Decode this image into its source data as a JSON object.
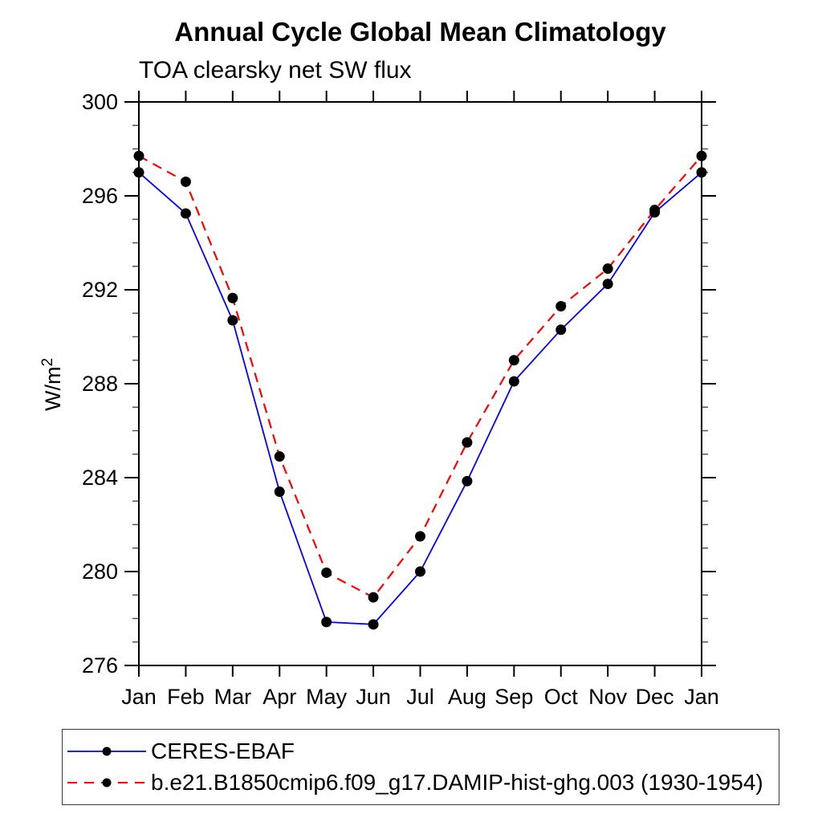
{
  "chart_data": {
    "type": "line",
    "title": "Annual Cycle Global Mean Climatology",
    "subtitle": "TOA clearsky net SW flux",
    "ylabel": "W/m2",
    "ylabel_base": "W/m",
    "ylabel_exp": "2",
    "xlabel": "",
    "categories": [
      "Jan",
      "Feb",
      "Mar",
      "Apr",
      "May",
      "Jun",
      "Jul",
      "Aug",
      "Sep",
      "Oct",
      "Nov",
      "Dec",
      "Jan"
    ],
    "ylim": [
      276,
      300
    ],
    "y_ticks": [
      276,
      280,
      284,
      288,
      292,
      296,
      300
    ],
    "y_minor_step": 1,
    "grid": false,
    "legend_position": "bottom",
    "series": [
      {
        "name": "CERES-EBAF",
        "color": "#0000ff",
        "style": "solid",
        "marker": "black-dot",
        "values": [
          297.0,
          295.25,
          290.7,
          283.4,
          277.85,
          277.75,
          280.0,
          283.85,
          288.1,
          290.3,
          292.25,
          295.3,
          297.0
        ]
      },
      {
        "name": "b.e21.B1850cmip6.f09_g17.DAMIP-hist-ghg.003 (1930-1954)",
        "color": "#ff0000",
        "style": "dashed",
        "marker": "black-dot",
        "values": [
          297.7,
          296.6,
          291.65,
          284.9,
          279.95,
          278.9,
          281.5,
          285.5,
          289.0,
          291.3,
          292.9,
          295.4,
          297.7
        ]
      }
    ],
    "marker_color": "#000000",
    "axis_color": "#000000"
  }
}
